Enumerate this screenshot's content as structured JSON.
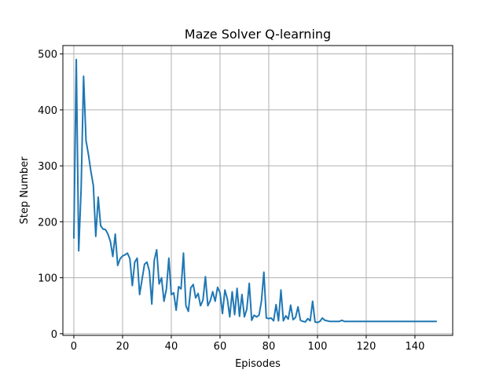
{
  "chart_data": {
    "type": "line",
    "title": "Maze Solver Q-learning",
    "xlabel": "Episodes",
    "ylabel": "Step Number",
    "xlim": [
      -4.5,
      155.5
    ],
    "ylim": [
      -3,
      515
    ],
    "xticks": [
      0,
      20,
      40,
      60,
      80,
      100,
      120,
      140
    ],
    "yticks": [
      0,
      100,
      200,
      300,
      400,
      500
    ],
    "grid": true,
    "legend": "none",
    "series": [
      {
        "color": "#1f77b4",
        "x": [
          0,
          1,
          2,
          3,
          4,
          5,
          6,
          7,
          8,
          9,
          10,
          11,
          12,
          13,
          14,
          15,
          16,
          17,
          18,
          19,
          20,
          21,
          22,
          23,
          24,
          25,
          26,
          27,
          28,
          29,
          30,
          31,
          32,
          33,
          34,
          35,
          36,
          37,
          38,
          39,
          40,
          41,
          42,
          43,
          44,
          45,
          46,
          47,
          48,
          49,
          50,
          51,
          52,
          53,
          54,
          55,
          56,
          57,
          58,
          59,
          60,
          61,
          62,
          63,
          64,
          65,
          66,
          67,
          68,
          69,
          70,
          71,
          72,
          73,
          74,
          75,
          76,
          77,
          78,
          79,
          80,
          81,
          82,
          83,
          84,
          85,
          86,
          87,
          88,
          89,
          90,
          91,
          92,
          93,
          94,
          95,
          96,
          97,
          98,
          99,
          100,
          101,
          102,
          103,
          104,
          105,
          106,
          107,
          108,
          109,
          110,
          111,
          112,
          113,
          114,
          115,
          116,
          117,
          118,
          119,
          120,
          121,
          122,
          123,
          124,
          125,
          126,
          127,
          128,
          129,
          130,
          131,
          132,
          133,
          134,
          135,
          136,
          137,
          138,
          139,
          140,
          141,
          142,
          143,
          144,
          145,
          146,
          147,
          148,
          149
        ],
        "y": [
          170,
          490,
          148,
          260,
          460,
          345,
          320,
          290,
          265,
          174,
          244,
          193,
          187,
          186,
          178,
          165,
          138,
          178,
          122,
          134,
          139,
          141,
          144,
          134,
          86,
          128,
          135,
          70,
          97,
          124,
          128,
          112,
          53,
          131,
          150,
          89,
          100,
          58,
          80,
          135,
          70,
          73,
          42,
          84,
          80,
          144,
          50,
          40,
          82,
          88,
          64,
          72,
          50,
          60,
          102,
          50,
          59,
          75,
          58,
          83,
          73,
          36,
          78,
          62,
          30,
          75,
          34,
          81,
          31,
          70,
          30,
          44,
          90,
          24,
          33,
          30,
          33,
          58,
          110,
          28,
          27,
          28,
          23,
          52,
          23,
          78,
          23,
          32,
          26,
          51,
          25,
          29,
          48,
          24,
          22,
          21,
          27,
          23,
          58,
          21,
          20,
          22,
          28,
          24,
          23,
          22,
          22,
          22,
          22,
          22,
          24,
          22,
          22,
          22,
          22,
          22,
          22,
          22,
          22,
          22,
          22,
          22,
          22,
          22,
          22,
          22,
          22,
          22,
          22,
          22,
          22,
          22,
          22,
          22,
          22,
          22,
          22,
          22,
          22,
          22,
          22,
          22,
          22,
          22,
          22,
          22,
          22,
          22,
          22,
          22
        ]
      }
    ]
  }
}
